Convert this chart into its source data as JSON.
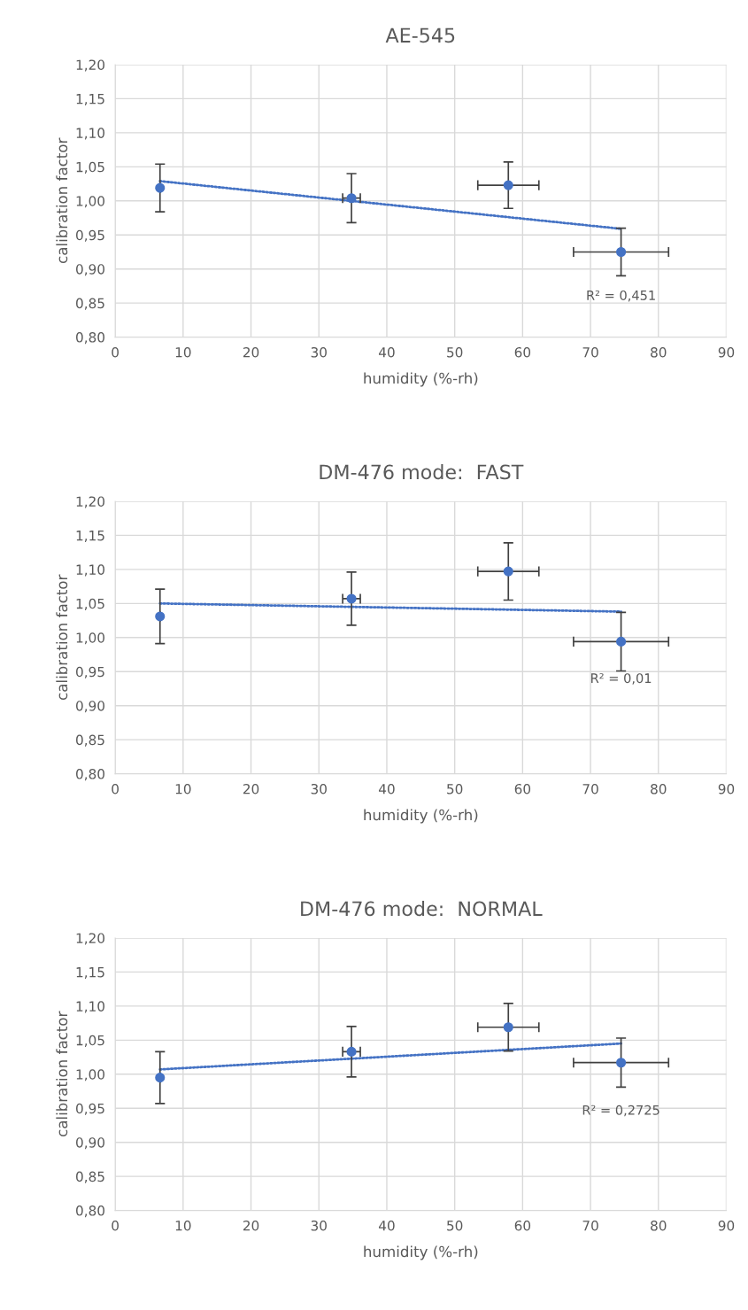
{
  "chart_data": [
    {
      "type": "scatter",
      "title": "AE-545",
      "xlabel": "humidity (%-rh)",
      "ylabel": "calibration factor",
      "xlim": [
        0,
        90
      ],
      "xticks": [
        0,
        10,
        20,
        30,
        40,
        50,
        60,
        70,
        80,
        90
      ],
      "ylim": [
        0.8,
        1.2
      ],
      "yticks": [
        {
          "value": 0.8,
          "label": "0,80"
        },
        {
          "value": 0.85,
          "label": "0,85"
        },
        {
          "value": 0.9,
          "label": "0,90"
        },
        {
          "value": 0.95,
          "label": "0,95"
        },
        {
          "value": 1.0,
          "label": "1,00"
        },
        {
          "value": 1.05,
          "label": "1,05"
        },
        {
          "value": 1.1,
          "label": "1,10"
        },
        {
          "value": 1.15,
          "label": "1,15"
        },
        {
          "value": 1.2,
          "label": "1,20"
        }
      ],
      "grid": true,
      "legend": false,
      "marker": "circle",
      "series": [
        {
          "color": "#4472c4",
          "x": [
            6.6,
            34.8,
            57.9,
            74.5
          ],
          "values": [
            1.019,
            1.004,
            1.023,
            0.925
          ],
          "errors": [
            0.035,
            0.036,
            0.034,
            0.035
          ],
          "xerrors": [
            null,
            1.3,
            4.5,
            7.0
          ]
        },
        {
          "type": "line",
          "color": "#4472c4",
          "line_style": "dotted",
          "marker": "none",
          "x": [
            6.6,
            74.5
          ],
          "values": [
            1.029,
            0.959
          ]
        }
      ],
      "annotations": [
        "R² = 0,451"
      ]
    },
    {
      "type": "scatter",
      "title": "DM-476 mode:  FAST",
      "xlabel": "humidity (%-rh)",
      "ylabel": "calibration factor",
      "xlim": [
        0,
        90
      ],
      "xticks": [
        0,
        10,
        20,
        30,
        40,
        50,
        60,
        70,
        80,
        90
      ],
      "ylim": [
        0.8,
        1.2
      ],
      "yticks": [
        {
          "value": 0.8,
          "label": "0,80"
        },
        {
          "value": 0.85,
          "label": "0,85"
        },
        {
          "value": 0.9,
          "label": "0,90"
        },
        {
          "value": 0.95,
          "label": "0,95"
        },
        {
          "value": 1.0,
          "label": "1,00"
        },
        {
          "value": 1.05,
          "label": "1,05"
        },
        {
          "value": 1.1,
          "label": "1,10"
        },
        {
          "value": 1.15,
          "label": "1,15"
        },
        {
          "value": 1.2,
          "label": "1,20"
        }
      ],
      "grid": true,
      "legend": false,
      "marker": "circle",
      "series": [
        {
          "color": "#4472c4",
          "x": [
            6.6,
            34.8,
            57.9,
            74.5
          ],
          "values": [
            1.031,
            1.057,
            1.097,
            0.994
          ],
          "errors": [
            0.04,
            0.039,
            0.042,
            0.043
          ],
          "xerrors": [
            null,
            1.3,
            4.5,
            7.0
          ]
        },
        {
          "type": "line",
          "color": "#4472c4",
          "line_style": "dotted",
          "marker": "none",
          "x": [
            6.6,
            74.5
          ],
          "values": [
            1.05,
            1.038
          ]
        }
      ],
      "annotations": [
        "R² = 0,01"
      ]
    },
    {
      "type": "scatter",
      "title": "DM-476 mode:  NORMAL",
      "xlabel": "humidity (%-rh)",
      "ylabel": "calibration factor",
      "xlim": [
        0,
        90
      ],
      "xticks": [
        0,
        10,
        20,
        30,
        40,
        50,
        60,
        70,
        80,
        90
      ],
      "ylim": [
        0.8,
        1.2
      ],
      "yticks": [
        {
          "value": 0.8,
          "label": "0,80"
        },
        {
          "value": 0.85,
          "label": "0,85"
        },
        {
          "value": 0.9,
          "label": "0,90"
        },
        {
          "value": 0.95,
          "label": "0,95"
        },
        {
          "value": 1.0,
          "label": "1,00"
        },
        {
          "value": 1.05,
          "label": "1,05"
        },
        {
          "value": 1.1,
          "label": "1,10"
        },
        {
          "value": 1.15,
          "label": "1,15"
        },
        {
          "value": 1.2,
          "label": "1,20"
        }
      ],
      "grid": true,
      "legend": false,
      "marker": "circle",
      "series": [
        {
          "color": "#4472c4",
          "x": [
            6.6,
            34.8,
            57.9,
            74.5
          ],
          "values": [
            0.995,
            1.033,
            1.069,
            1.017
          ],
          "errors": [
            0.038,
            0.037,
            0.035,
            0.036
          ],
          "xerrors": [
            null,
            1.3,
            4.5,
            7.0
          ]
        },
        {
          "type": "line",
          "color": "#4472c4",
          "line_style": "dotted",
          "marker": "none",
          "x": [
            6.6,
            74.5
          ],
          "values": [
            1.007,
            1.045
          ]
        }
      ],
      "annotations": [
        "R² = 0,2725"
      ]
    }
  ]
}
